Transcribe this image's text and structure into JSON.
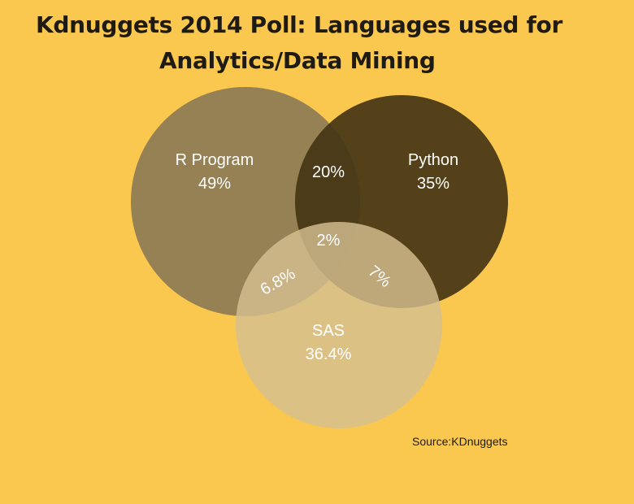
{
  "title": {
    "line1": "Kdnuggets 2014 Poll: Languages used for",
    "line2": "Analytics/Data Mining"
  },
  "sets": {
    "r": {
      "name": "R Program",
      "value": "49%",
      "color": "#8c7b55"
    },
    "python": {
      "name": "Python",
      "value": "35%",
      "color": "#453515"
    },
    "sas": {
      "name": "SAS",
      "value": "36.4%",
      "color": "#d6c090"
    }
  },
  "overlaps": {
    "r_python": "20%",
    "r_python_sas": "2%",
    "r_sas": "6.8%",
    "python_sas": "7%"
  },
  "source": "Source:KDnuggets",
  "colors": {
    "background": "#fac84f",
    "title": "#1e1a14",
    "label": "#ffffff"
  }
}
